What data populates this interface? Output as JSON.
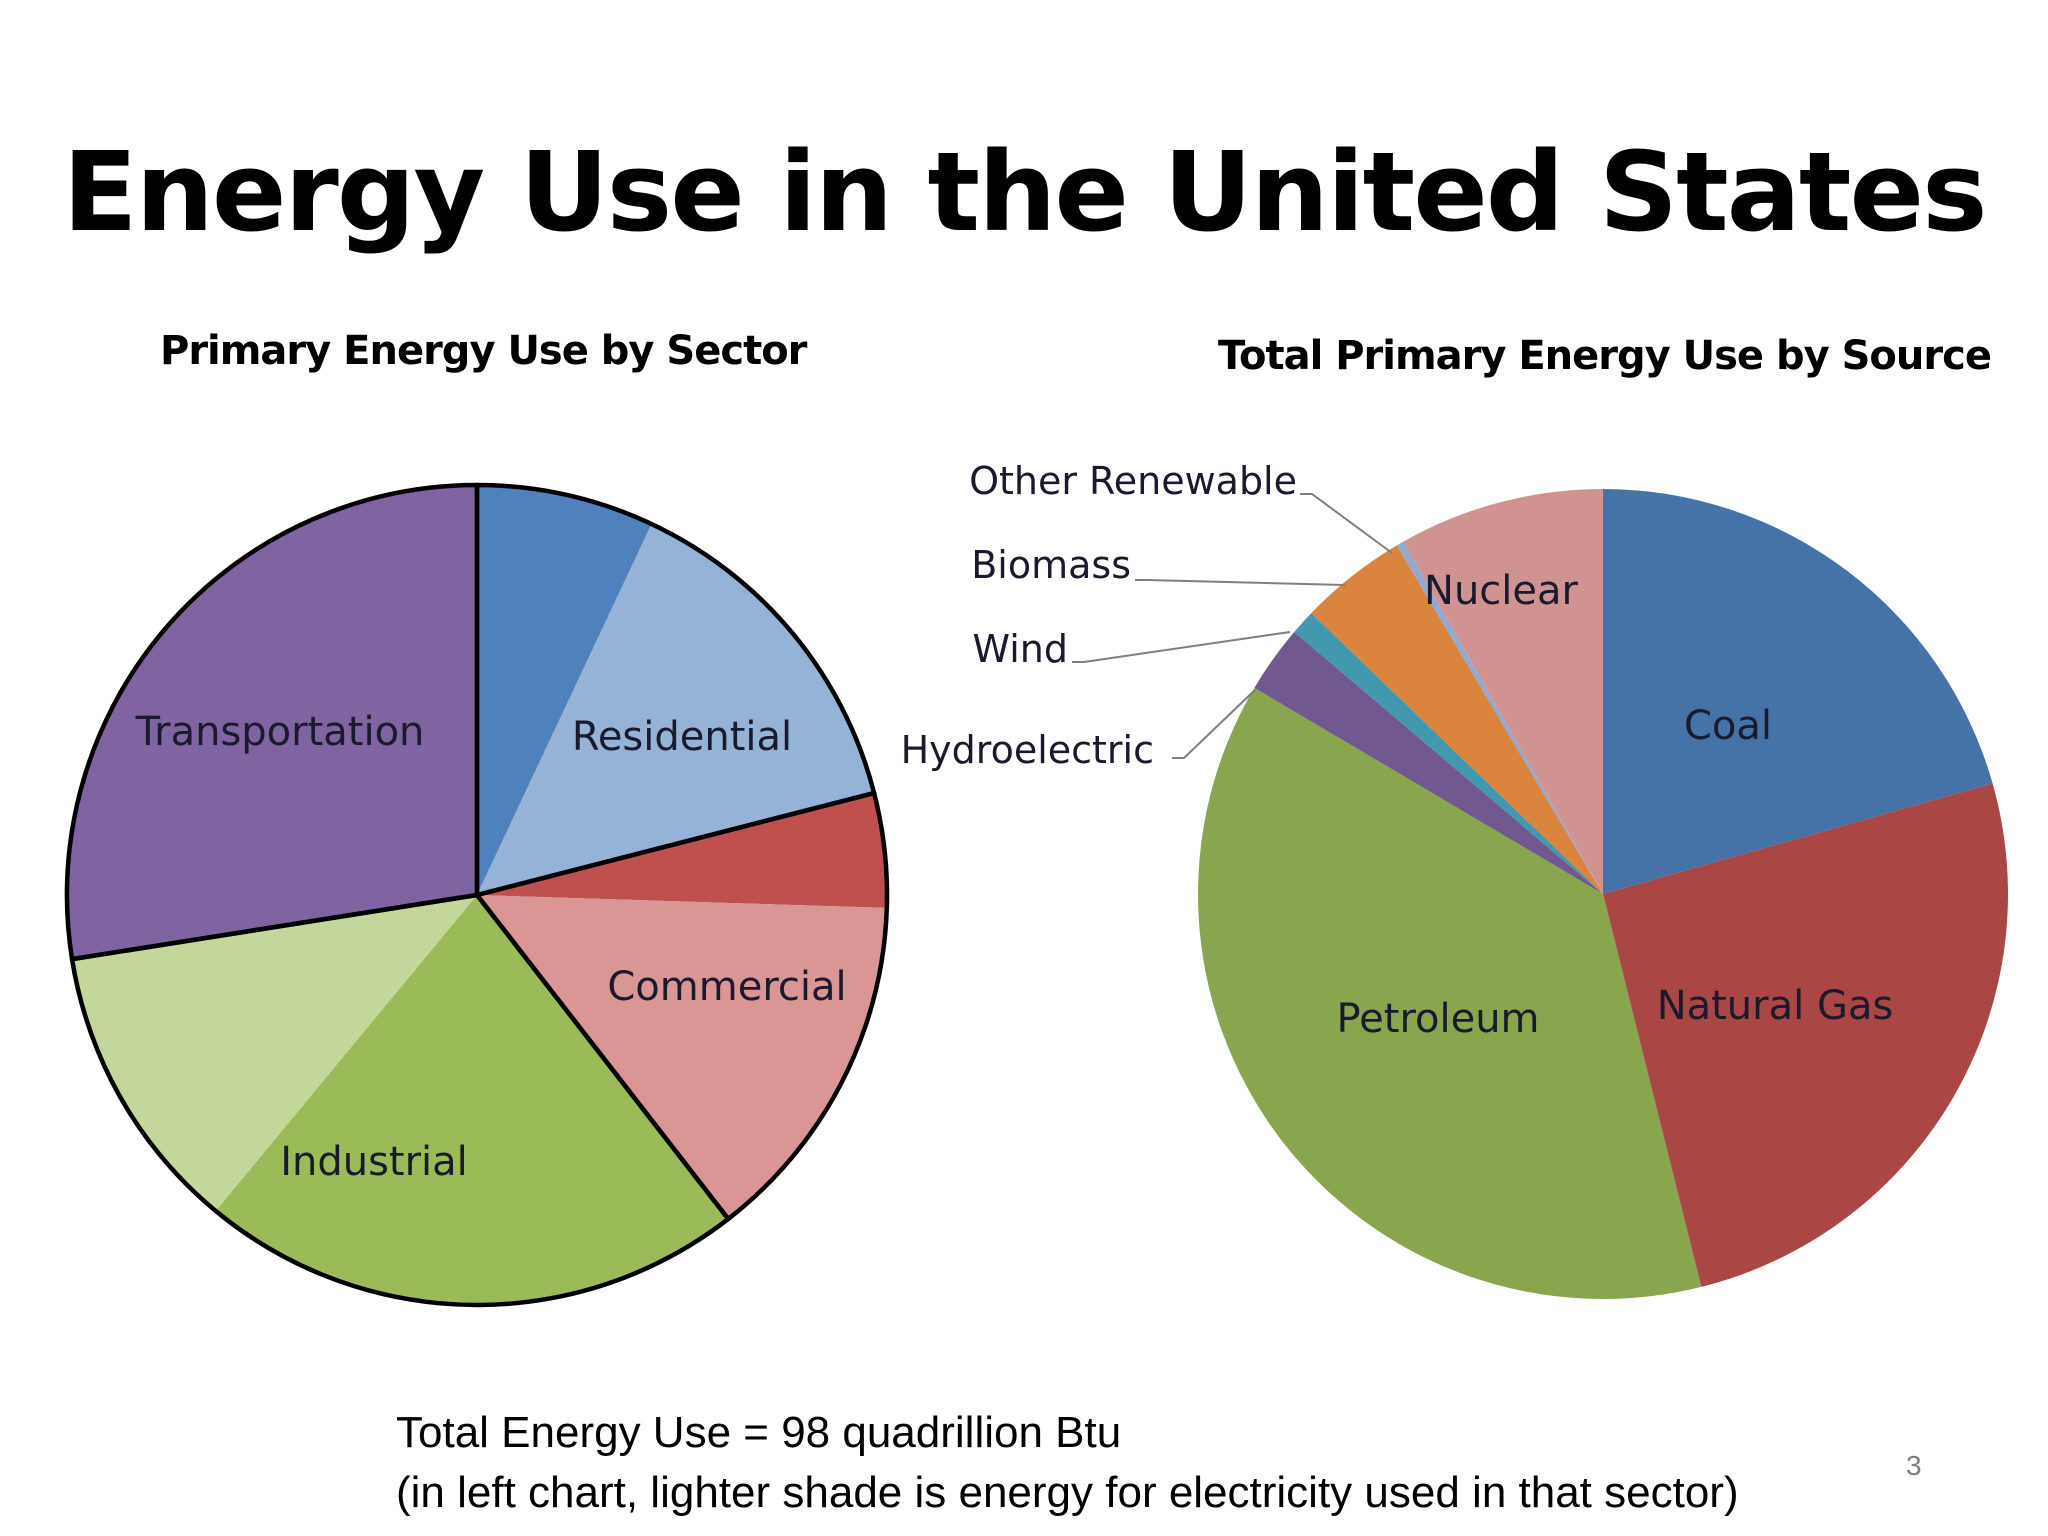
{
  "slide": {
    "title": "Energy Use in the United States",
    "footnote_line1": "Total Energy Use =  98 quadrillion Btu",
    "footnote_line2": "(in left chart, lighter shade is energy for electricity used in that sector)",
    "page_number": "3"
  },
  "chart_data": [
    {
      "type": "pie",
      "title": "Primary Energy Use by Sector",
      "start_angle_deg": 0,
      "direction": "clockwise",
      "slices": [
        {
          "name": "Residential",
          "value": 7.0,
          "color": "#4f81bd",
          "label": ""
        },
        {
          "name": "Residential (electricity)",
          "value": 14.0,
          "color": "#95b3d7",
          "label": "Residential"
        },
        {
          "name": "Commercial",
          "value": 4.5,
          "color": "#c0504d",
          "label": ""
        },
        {
          "name": "Commercial (electricity)",
          "value": 14.0,
          "color": "#d99694",
          "label": "Commercial"
        },
        {
          "name": "Industrial",
          "value": 21.5,
          "color": "#9bbb59",
          "label": "Industrial"
        },
        {
          "name": "Industrial (electricity)",
          "value": 11.5,
          "color": "#c4d79b",
          "label": ""
        },
        {
          "name": "Transportation",
          "value": 27.5,
          "color": "#8064a2",
          "label": "Transportation"
        }
      ],
      "outlined_groups": [
        [
          0,
          1
        ],
        [
          2,
          3
        ],
        [
          4,
          5
        ],
        [
          6
        ]
      ]
    },
    {
      "type": "pie",
      "title": "Total Primary Energy Use by Source",
      "start_angle_deg": 0,
      "direction": "clockwise",
      "slices": [
        {
          "name": "Coal",
          "value": 20.6,
          "color": "#4572a7",
          "label": "Coal"
        },
        {
          "name": "Natural Gas",
          "value": 25.5,
          "color": "#aa4643",
          "label": "Natural Gas"
        },
        {
          "name": "Petroleum",
          "value": 37.4,
          "color": "#89a54e",
          "label": "Petroleum"
        },
        {
          "name": "Hydroelectric",
          "value": 2.7,
          "color": "#71588f",
          "label": "Hydroelectric"
        },
        {
          "name": "Wind",
          "value": 1.0,
          "color": "#4198af",
          "label": "Wind"
        },
        {
          "name": "Biomass",
          "value": 4.3,
          "color": "#db843d",
          "label": "Biomass"
        },
        {
          "name": "Other Renewable",
          "value": 0.3,
          "color": "#93a9cf",
          "label": "Other Renewable"
        },
        {
          "name": "Nuclear",
          "value": 8.2,
          "color": "#d19392",
          "label": "Nuclear"
        }
      ]
    }
  ]
}
